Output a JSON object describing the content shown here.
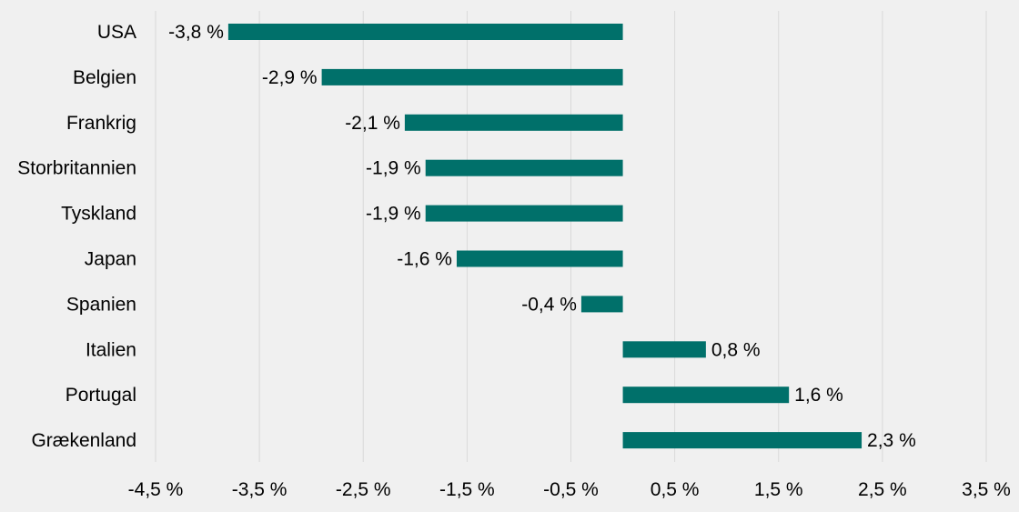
{
  "chart_data": {
    "type": "bar",
    "orientation": "horizontal",
    "categories": [
      "USA",
      "Belgien",
      "Frankrig",
      "Storbritannien",
      "Tyskland",
      "Japan",
      "Spanien",
      "Italien",
      "Portugal",
      "Grækenland"
    ],
    "values": [
      -3.8,
      -2.9,
      -2.1,
      -1.9,
      -1.9,
      -1.6,
      -0.4,
      0.8,
      1.6,
      2.3
    ],
    "data_labels": [
      "-3,8 %",
      "-2,9 %",
      "-2,1 %",
      "-1,9 %",
      "-1,9 %",
      "-1,6 %",
      "-0,4 %",
      "0,8 %",
      "1,6 %",
      "2,3 %"
    ],
    "x_ticks": [
      -4.5,
      -3.5,
      -2.5,
      -1.5,
      -0.5,
      0.5,
      1.5,
      2.5,
      3.5
    ],
    "x_tick_labels": [
      "-4,5 %",
      "-3,5 %",
      "-2,5 %",
      "-1,5 %",
      "-0,5 %",
      "0,5 %",
      "1,5 %",
      "2,5 %",
      "3,5 %"
    ],
    "xlim": [
      -4.5,
      3.5
    ],
    "title": "",
    "xlabel": "",
    "ylabel": "",
    "grid": "vertical",
    "legend": "none",
    "colors": {
      "bar": "#00706a",
      "grid": "#d9d9d9",
      "background": "#f0f0f0",
      "text": "#000000"
    }
  }
}
